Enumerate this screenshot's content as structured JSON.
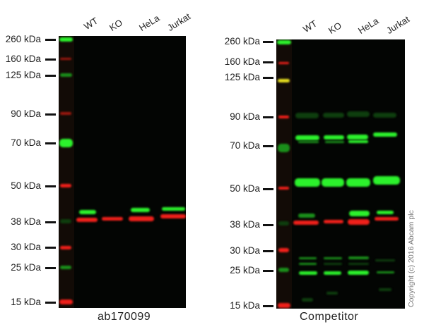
{
  "panels": [
    {
      "caption": "ab170099",
      "lanes": [
        "WT",
        "KO",
        "HeLa",
        "Jurkat"
      ],
      "markers": [
        "260 kDa",
        "160 kDa",
        "125 kDa",
        "90 kDa",
        "70 kDa",
        "50 kDa",
        "38 kDa",
        "30 kDa",
        "25 kDa",
        "15 kDa"
      ]
    },
    {
      "caption": "Competitor",
      "lanes": [
        "WT",
        "KO",
        "HeLa",
        "Jurkat"
      ],
      "markers": [
        "260 kDa",
        "160 kDa",
        "125 kDa",
        "90 kDa",
        "70 kDa",
        "50 kDa",
        "38 kDa",
        "30 kDa",
        "25 kDa",
        "15 kDa"
      ]
    }
  ],
  "copyright": "Copyright (c) 2016 Abcam plc",
  "colors": {
    "green_channel": "#2cf22c",
    "red_channel": "#f0201a",
    "background": "#030503"
  }
}
